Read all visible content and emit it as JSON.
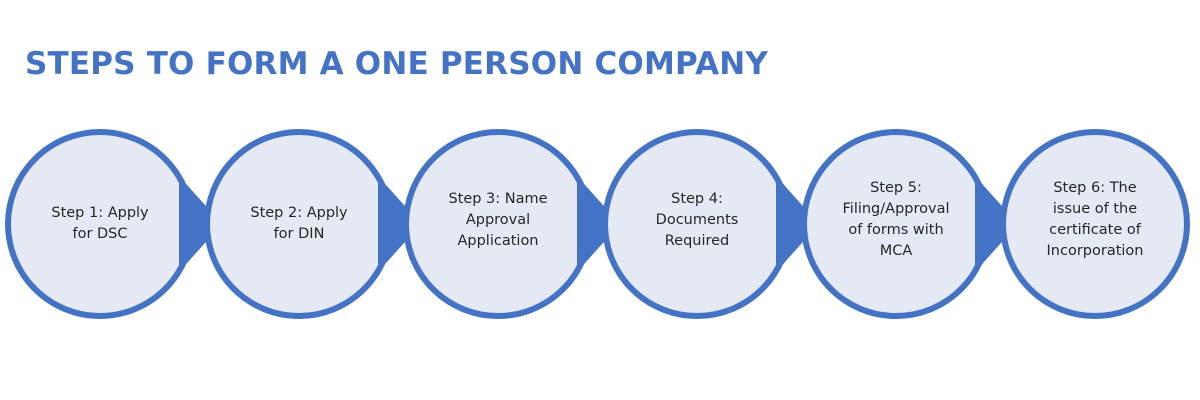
{
  "title": "STEPS TO FORM A ONE PERSON COMPANY",
  "colors": {
    "accent": "#4472c4",
    "circle_fill": "#e4e9f3",
    "text": "#262626"
  },
  "steps": [
    {
      "label": "Step 1: Apply\nfor DSC"
    },
    {
      "label": "Step 2: Apply\nfor DIN"
    },
    {
      "label": "Step 3: Name\nApproval\nApplication"
    },
    {
      "label": "Step 4:\nDocuments\nRequired"
    },
    {
      "label": "Step 5:\nFiling/Approval\nof forms with\nMCA"
    },
    {
      "label": "Step 6: The\nissue of the\ncertificate of\nIncorporation"
    }
  ]
}
